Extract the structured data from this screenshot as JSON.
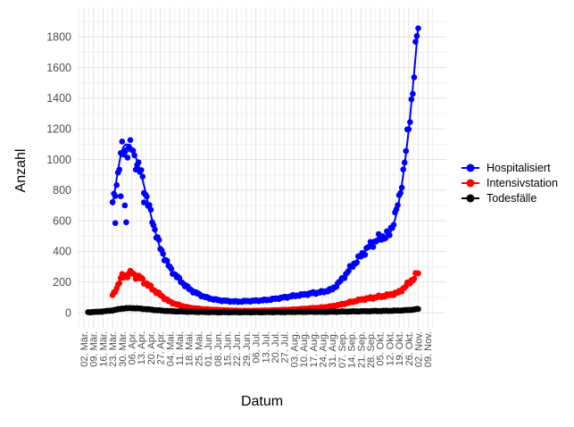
{
  "chart_data": {
    "type": "scatter",
    "title": "",
    "xlabel": "Datum",
    "ylabel": "Anzahl",
    "grid": true,
    "legend_position": "right",
    "x_tick_labels": [
      "02. Mär.",
      "09. Mär.",
      "16. Mär.",
      "23. Mär.",
      "30. Mär.",
      "06. Apr.",
      "13. Apr.",
      "20. Apr.",
      "27. Apr.",
      "04. Mai.",
      "11. Mai.",
      "18. Mai.",
      "25. Mai.",
      "01. Jun.",
      "08. Jun.",
      "15. Jun.",
      "22. Jun.",
      "29. Jun.",
      "06. Jul.",
      "13. Jul.",
      "20. Jul.",
      "27. Jul.",
      "03. Aug.",
      "10. Aug.",
      "17. Aug.",
      "24. Aug.",
      "31. Aug.",
      "07. Sep.",
      "14. Sep.",
      "21. Sep.",
      "28. Sep.",
      "05. Okt.",
      "12. Okt.",
      "19. Okt.",
      "26. Okt.",
      "02. Nov.",
      "09. Nov."
    ],
    "y_ticks": [
      0,
      200,
      400,
      600,
      800,
      1000,
      1200,
      1400,
      1600,
      1800
    ],
    "ylim": [
      0,
      1950
    ],
    "x_tick_interval_days": 7,
    "point_interval_days": 1,
    "series": [
      {
        "name": "Hospitalisiert",
        "color": "#0000ff",
        "start_day": 21,
        "end_day": 245,
        "weekly_values": [
          null,
          null,
          null,
          700,
          1060,
          1070,
          900,
          640,
          420,
          290,
          215,
          155,
          120,
          95,
          82,
          76,
          72,
          75,
          78,
          82,
          90,
          100,
          110,
          118,
          128,
          135,
          152,
          215,
          300,
          370,
          440,
          490,
          510,
          730,
          1190,
          1870,
          null
        ],
        "outlier_points": [
          [
            23,
            585
          ],
          [
            27,
            760
          ],
          [
            30,
            700
          ],
          [
            31,
            590
          ],
          [
            44,
            720
          ]
        ]
      },
      {
        "name": "Intensivstation",
        "color": "#ff0000",
        "start_day": 21,
        "end_day": 245,
        "weekly_values": [
          null,
          null,
          null,
          110,
          235,
          258,
          220,
          165,
          115,
          70,
          48,
          33,
          26,
          21,
          18,
          15,
          13,
          12,
          13,
          14,
          16,
          18,
          21,
          25,
          30,
          34,
          42,
          55,
          70,
          85,
          95,
          105,
          115,
          133,
          190,
          260,
          null
        ],
        "outlier_points": []
      },
      {
        "name": "Todesfälle",
        "color": "#000000",
        "start_day": 3,
        "end_day": 245,
        "weekly_values": [
          2,
          4,
          8,
          15,
          27,
          30,
          26,
          20,
          14,
          10,
          8,
          6,
          5,
          4,
          3,
          3,
          3,
          3,
          3,
          3,
          4,
          4,
          5,
          5,
          6,
          5,
          6,
          7,
          8,
          9,
          10,
          11,
          12,
          14,
          17,
          24,
          null
        ],
        "outlier_points": []
      }
    ]
  }
}
